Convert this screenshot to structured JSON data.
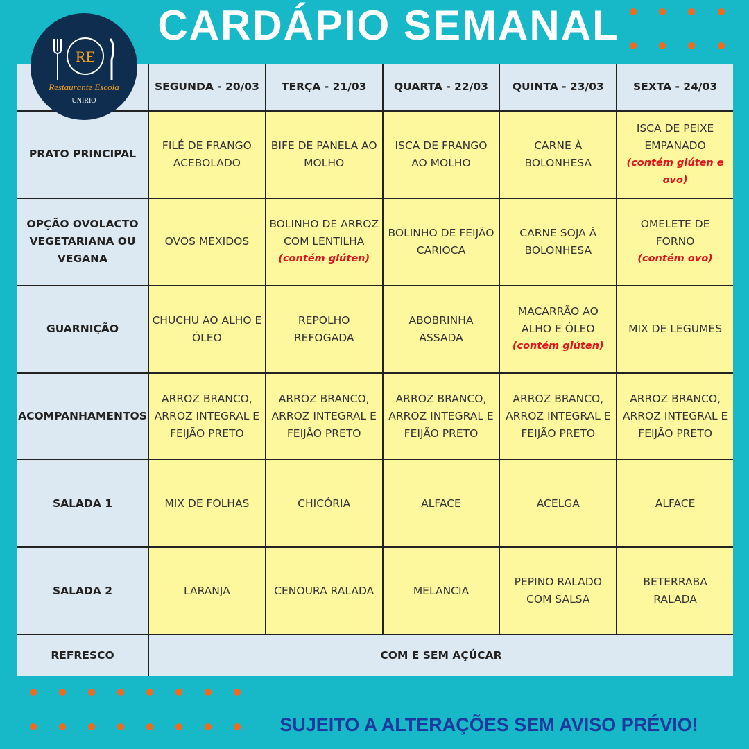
{
  "header": {
    "title": "CARDÁPIO SEMANAL"
  },
  "logo": {
    "mark": "RE",
    "name": "Restaurante Escola",
    "institution": "UNIRIO"
  },
  "table": {
    "days": [
      "SEGUNDA - 20/03",
      "TERÇA - 21/03",
      "QUARTA - 22/03",
      "QUINTA - 23/03",
      "SEXTA - 24/03"
    ],
    "rows": [
      {
        "label": "PRATO PRINCIPAL",
        "cells": [
          {
            "text": "FILÉ DE FRANGO ACEBOLADO"
          },
          {
            "text": "BIFE DE PANELA AO MOLHO"
          },
          {
            "text": "ISCA DE FRANGO AO MOLHO"
          },
          {
            "text": "CARNE À BOLONHESA"
          },
          {
            "text": "ISCA DE PEIXE EMPANADO",
            "note": "(contém glúten e ovo)"
          }
        ]
      },
      {
        "label": "OPÇÃO OVOLACTO VEGETARIANA OU VEGANA",
        "cells": [
          {
            "text": "OVOS MEXIDOS"
          },
          {
            "text": "BOLINHO DE ARROZ COM LENTILHA",
            "note": "(contém glúten)"
          },
          {
            "text": "BOLINHO DE FEIJÃO CARIOCA"
          },
          {
            "text": "CARNE SOJA À BOLONHESA"
          },
          {
            "text": "OMELETE DE FORNO",
            "note": "(contém ovo)"
          }
        ]
      },
      {
        "label": "GUARNIÇÃO",
        "cells": [
          {
            "text": "CHUCHU AO ALHO E ÓLEO"
          },
          {
            "text": "REPOLHO REFOGADA"
          },
          {
            "text": "ABOBRINHA ASSADA"
          },
          {
            "text": "MACARRÃO AO ALHO E ÓLEO",
            "note": "(contém glúten)"
          },
          {
            "text": "MIX DE LEGUMES"
          }
        ]
      },
      {
        "label": "ACOMPANHAMENTOS",
        "cells": [
          {
            "text": "ARROZ BRANCO, ARROZ INTEGRAL E FEIJÃO PRETO"
          },
          {
            "text": "ARROZ BRANCO, ARROZ INTEGRAL E FEIJÃO PRETO"
          },
          {
            "text": "ARROZ BRANCO, ARROZ INTEGRAL E FEIJÃO PRETO"
          },
          {
            "text": "ARROZ BRANCO, ARROZ INTEGRAL E FEIJÃO PRETO"
          },
          {
            "text": "ARROZ BRANCO, ARROZ INTEGRAL E FEIJÃO PRETO"
          }
        ]
      },
      {
        "label": "SALADA 1",
        "cells": [
          {
            "text": "MIX DE FOLHAS"
          },
          {
            "text": "CHICÓRIA"
          },
          {
            "text": "ALFACE"
          },
          {
            "text": "ACELGA"
          },
          {
            "text": "ALFACE"
          }
        ]
      },
      {
        "label": "SALADA 2",
        "cells": [
          {
            "text": "LARANJA"
          },
          {
            "text": "CENOURA RALADA"
          },
          {
            "text": "MELANCIA"
          },
          {
            "text": "PEPINO RALADO COM SALSA"
          },
          {
            "text": "BETERRABA RALADA"
          }
        ]
      }
    ],
    "footer_row": {
      "label": "REFRESCO",
      "text": "COM E SEM AÇÚCAR"
    }
  },
  "notice": "SUJEITO A ALTERAÇÕES SEM AVISO PRÉVIO!"
}
